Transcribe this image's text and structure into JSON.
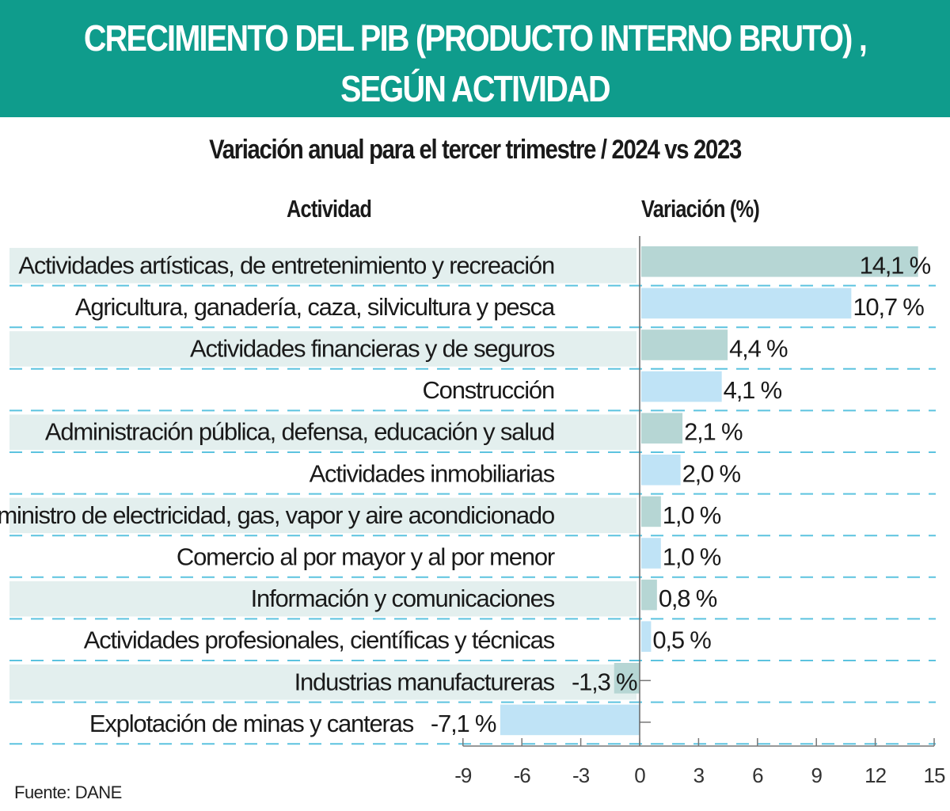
{
  "header": {
    "title_line1": "CRECIMIENTO DEL PIB (PRODUCTO INTERNO BRUTO) ,",
    "title_line2": "SEGÚN ACTIVIDAD",
    "background_color": "#0f9c8c"
  },
  "chart_data": {
    "type": "bar",
    "orientation": "horizontal",
    "subtitle": "Variación anual para el tercer trimestre / 2024 vs 2023",
    "category_header": "Actividad",
    "value_header": "Variación (%)",
    "categories": [
      "Actividades artísticas, de entretenimiento y recreación",
      "Agricultura, ganadería, caza, silvicultura y pesca",
      "Actividades financieras y de seguros",
      "Construcción",
      "Administración pública, defensa, educación y salud",
      "Actividades inmobiliarias",
      "Suministro de electricidad, gas, vapor y aire acondicionado",
      "Comercio al por mayor y al por menor",
      "Información y comunicaciones",
      "Actividades profesionales, científicas y técnicas",
      "Industrias manufactureras",
      "Explotación de minas y canteras"
    ],
    "values": [
      14.1,
      10.7,
      4.4,
      4.1,
      2.1,
      2.0,
      1.0,
      1.0,
      0.8,
      0.5,
      -1.3,
      -7.1
    ],
    "value_labels": [
      "14,1 %",
      "10,7 %",
      "4,4 %",
      "4,1 %",
      "2,1 %",
      "2,0 %",
      "1,0 %",
      "1,0 %",
      "0,8 %",
      "0,5 %",
      "-1,3 %",
      "-7,1 %"
    ],
    "xlim": [
      -9,
      15
    ],
    "xticks": [
      "-9",
      "-6",
      "-3",
      "0",
      "3",
      "6",
      "9",
      "12",
      "15"
    ],
    "xtick_values": [
      -9,
      -6,
      -3,
      0,
      3,
      6,
      9,
      12,
      15
    ],
    "colors": {
      "bar_a": "#b6d6d4",
      "bar_b": "#bfe3f6",
      "band": "#e3efee",
      "gridline": "#5cc3df"
    }
  },
  "source": "Fuente:  DANE"
}
